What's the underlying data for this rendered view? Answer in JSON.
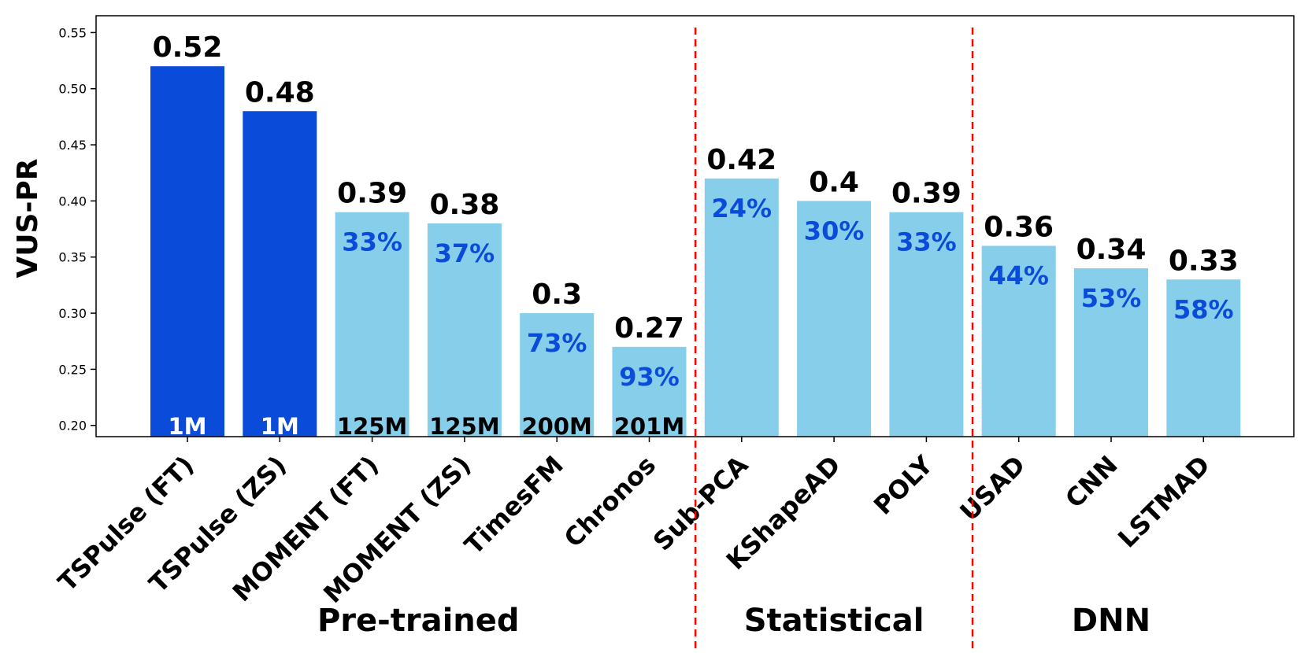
{
  "colors": {
    "highlight": "#0a4bd9",
    "bar": "#87ceeb",
    "pct_text": "#0a4bd9",
    "divider": "#ff0000",
    "highlight_param_text": "#ffffff",
    "param_text": "#000000"
  },
  "chart_data": {
    "type": "bar",
    "title": "",
    "xlabel": "",
    "ylabel": "VUS-PR",
    "ylim": [
      0.19,
      0.565
    ],
    "yticks": [
      "0.20",
      "0.25",
      "0.30",
      "0.35",
      "0.40",
      "0.45",
      "0.50",
      "0.55"
    ],
    "grid": false,
    "categories": [
      "TSPulse (FT)",
      "TSPulse (ZS)",
      "MOMENT (FT)",
      "MOMENT (ZS)",
      "TimesFM",
      "Chronos",
      "Sub-PCA",
      "KShapeAD",
      "POLY",
      "USAD",
      "CNN",
      "LSTMAD"
    ],
    "values": [
      0.52,
      0.48,
      0.39,
      0.38,
      0.3,
      0.27,
      0.42,
      0.4,
      0.39,
      0.36,
      0.34,
      0.33
    ],
    "value_labels": [
      "0.52",
      "0.48",
      "0.39",
      "0.38",
      "0.3",
      "0.27",
      "0.42",
      "0.4",
      "0.39",
      "0.36",
      "0.34",
      "0.33"
    ],
    "highlighted": [
      true,
      true,
      false,
      false,
      false,
      false,
      false,
      false,
      false,
      false,
      false,
      false
    ],
    "pct_labels": [
      "",
      "",
      "33%",
      "37%",
      "73%",
      "93%",
      "24%",
      "30%",
      "33%",
      "44%",
      "53%",
      "58%"
    ],
    "param_labels": [
      "1M",
      "1M",
      "125M",
      "125M",
      "200M",
      "201M",
      "",
      "",
      "",
      "",
      "",
      ""
    ],
    "groups": [
      {
        "name": "Pre-trained",
        "start": 0,
        "end": 5
      },
      {
        "name": "Statistical",
        "start": 6,
        "end": 8
      },
      {
        "name": "DNN",
        "start": 9,
        "end": 11
      }
    ],
    "dividers_between": [
      [
        5,
        6
      ],
      [
        8,
        9
      ]
    ]
  }
}
